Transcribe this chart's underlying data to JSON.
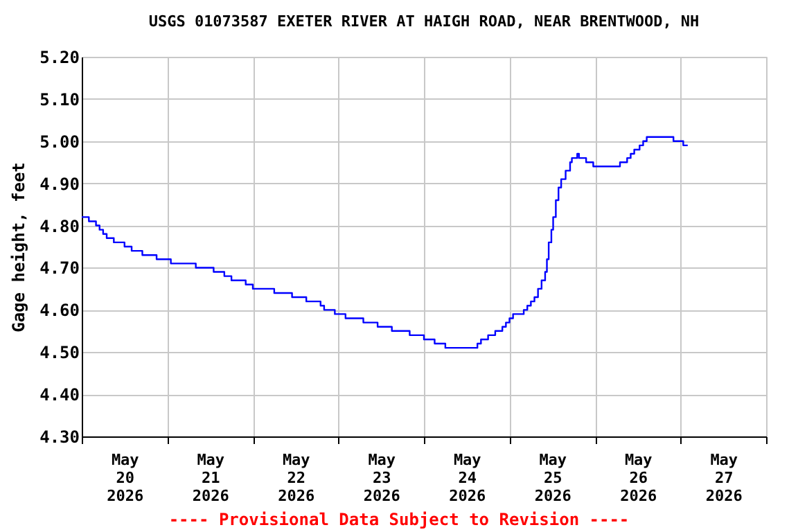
{
  "chart_data": {
    "type": "step",
    "title": "USGS 01073587 EXETER RIVER AT HAIGH ROAD, NEAR BRENTWOOD, NH",
    "ylabel": "Gage height, feet",
    "annotations": [
      "---- Provisional Data Subject to Revision ----"
    ],
    "grid": true,
    "legend": false,
    "marker": "none",
    "line_style": "solid",
    "xlim": [
      "2026-05-20T00:00",
      "2026-05-28T00:00"
    ],
    "xticks": [
      {
        "value": "2026-05-20T00:00",
        "label": null
      },
      {
        "value": "2026-05-20T12:00",
        "label": "May\n20\n2026"
      },
      {
        "value": "2026-05-21T00:00",
        "label": null
      },
      {
        "value": "2026-05-21T12:00",
        "label": "May\n21\n2026"
      },
      {
        "value": "2026-05-22T00:00",
        "label": null
      },
      {
        "value": "2026-05-22T12:00",
        "label": "May\n22\n2026"
      },
      {
        "value": "2026-05-23T00:00",
        "label": null
      },
      {
        "value": "2026-05-23T12:00",
        "label": "May\n23\n2026"
      },
      {
        "value": "2026-05-24T00:00",
        "label": null
      },
      {
        "value": "2026-05-24T12:00",
        "label": "May\n24\n2026"
      },
      {
        "value": "2026-05-25T00:00",
        "label": null
      },
      {
        "value": "2026-05-25T12:00",
        "label": "May\n25\n2026"
      },
      {
        "value": "2026-05-26T00:00",
        "label": null
      },
      {
        "value": "2026-05-26T12:00",
        "label": "May\n26\n2026"
      },
      {
        "value": "2026-05-27T00:00",
        "label": null
      },
      {
        "value": "2026-05-27T12:00",
        "label": "May\n27\n2026"
      },
      {
        "value": "2026-05-28T00:00",
        "label": null
      }
    ],
    "ylim": [
      4.3,
      5.2
    ],
    "yticks": [
      {
        "value": 4.3,
        "label": "4.30"
      },
      {
        "value": 4.4,
        "label": "4.40"
      },
      {
        "value": 4.5,
        "label": "4.50"
      },
      {
        "value": 4.6,
        "label": "4.60"
      },
      {
        "value": 4.7,
        "label": "4.70"
      },
      {
        "value": 4.8,
        "label": "4.80"
      },
      {
        "value": 4.9,
        "label": "4.90"
      },
      {
        "value": 5.0,
        "label": "5.00"
      },
      {
        "value": 5.1,
        "label": "5.10"
      },
      {
        "value": 5.2,
        "label": "5.20"
      }
    ],
    "x": [
      "2026-05-20T00:00",
      "2026-05-20T02:00",
      "2026-05-20T04:00",
      "2026-05-20T05:00",
      "2026-05-20T06:00",
      "2026-05-20T07:00",
      "2026-05-20T09:00",
      "2026-05-20T12:00",
      "2026-05-20T14:00",
      "2026-05-20T17:00",
      "2026-05-20T21:00",
      "2026-05-21T01:00",
      "2026-05-21T08:00",
      "2026-05-21T13:00",
      "2026-05-21T16:00",
      "2026-05-21T18:00",
      "2026-05-21T22:00",
      "2026-05-22T00:00",
      "2026-05-22T06:00",
      "2026-05-22T11:00",
      "2026-05-22T15:00",
      "2026-05-22T19:00",
      "2026-05-22T20:00",
      "2026-05-22T23:00",
      "2026-05-23T02:00",
      "2026-05-23T07:00",
      "2026-05-23T11:00",
      "2026-05-23T15:00",
      "2026-05-23T20:00",
      "2026-05-24T00:00",
      "2026-05-24T03:00",
      "2026-05-24T06:00",
      "2026-05-24T15:00",
      "2026-05-24T16:00",
      "2026-05-24T18:00",
      "2026-05-24T20:00",
      "2026-05-24T22:00",
      "2026-05-24T23:00",
      "2026-05-25T00:00",
      "2026-05-25T01:00",
      "2026-05-25T04:00",
      "2026-05-25T05:00",
      "2026-05-25T06:00",
      "2026-05-25T07:00",
      "2026-05-25T08:00",
      "2026-05-25T09:00",
      "2026-05-25T10:00",
      "2026-05-25T10:30",
      "2026-05-25T11:00",
      "2026-05-25T11:45",
      "2026-05-25T12:15",
      "2026-05-25T13:00",
      "2026-05-25T13:45",
      "2026-05-25T14:30",
      "2026-05-25T15:45",
      "2026-05-25T17:00",
      "2026-05-25T17:30",
      "2026-05-25T19:00",
      "2026-05-25T19:30",
      "2026-05-25T21:30",
      "2026-05-25T23:30",
      "2026-05-26T07:00",
      "2026-05-26T09:00",
      "2026-05-26T10:00",
      "2026-05-26T11:00",
      "2026-05-26T12:30",
      "2026-05-26T13:30",
      "2026-05-26T14:30",
      "2026-05-26T22:00",
      "2026-05-27T00:45",
      "2026-05-27T02:00"
    ],
    "series": [
      {
        "color": "#0000ff",
        "values": [
          4.82,
          4.81,
          4.8,
          4.79,
          4.78,
          4.77,
          4.76,
          4.75,
          4.74,
          4.73,
          4.72,
          4.71,
          4.7,
          4.69,
          4.68,
          4.67,
          4.66,
          4.65,
          4.64,
          4.63,
          4.62,
          4.61,
          4.6,
          4.59,
          4.58,
          4.57,
          4.56,
          4.55,
          4.54,
          4.53,
          4.52,
          4.51,
          4.52,
          4.53,
          4.54,
          4.55,
          4.56,
          4.57,
          4.58,
          4.59,
          4.6,
          4.61,
          4.62,
          4.63,
          4.65,
          4.67,
          4.69,
          4.72,
          4.76,
          4.79,
          4.82,
          4.86,
          4.89,
          4.91,
          4.93,
          4.95,
          4.96,
          4.97,
          4.96,
          4.95,
          4.94,
          4.95,
          4.96,
          4.97,
          4.98,
          4.99,
          5.0,
          5.01,
          5.0,
          4.99,
          4.99
        ]
      }
    ]
  }
}
